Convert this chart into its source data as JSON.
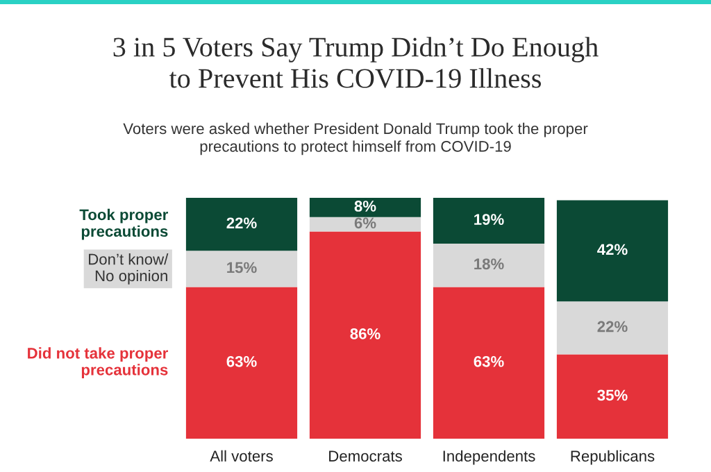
{
  "chart_data": {
    "type": "bar",
    "title": "3 in 5 Voters Say Trump Didn’t Do Enough\nto Prevent His COVID-19 Illness",
    "subtitle": "Voters were asked whether President Donald Trump took the proper\nprecautions to protect himself from COVID-19",
    "categories": [
      "All voters",
      "Democrats",
      "Independents",
      "Republicans"
    ],
    "stacked": true,
    "ylim": [
      0,
      100
    ],
    "tick_labels": "x",
    "series": [
      {
        "name": "Did not take proper\nprecautions",
        "color": "#e5323a",
        "values": [
          63,
          86,
          63,
          35
        ],
        "value_labels": [
          "63%",
          "86%",
          "63%",
          "35%"
        ]
      },
      {
        "name": "Don’t know/\nNo opinion",
        "color": "#d9d9d9",
        "values": [
          15,
          6,
          18,
          22
        ],
        "value_labels": [
          "15%",
          "6%",
          "18%",
          "22%"
        ]
      },
      {
        "name": "Took proper\nprecautions",
        "color": "#0b4a35",
        "values": [
          22,
          8,
          19,
          42
        ],
        "value_labels": [
          "22%",
          "8%",
          "19%",
          "42%"
        ]
      }
    ]
  }
}
